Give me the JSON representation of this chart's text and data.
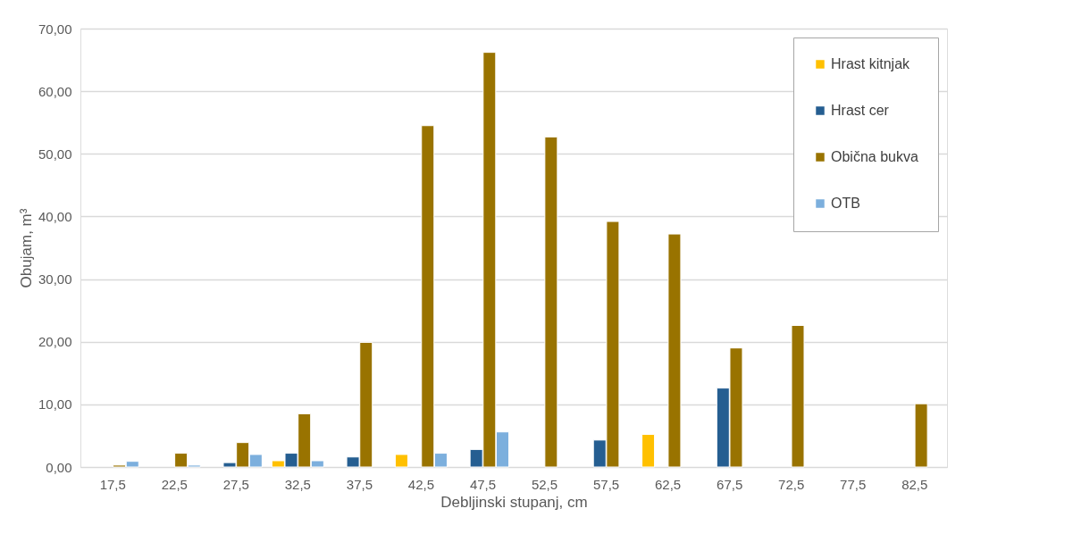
{
  "chart_data": {
    "type": "bar",
    "xlabel": "Debljinski stupanj, cm",
    "ylabel": "Obujam, m³",
    "categories": [
      "17,5",
      "22,5",
      "27,5",
      "32,5",
      "37,5",
      "42,5",
      "47,5",
      "52,5",
      "57,5",
      "62,5",
      "67,5",
      "72,5",
      "77,5",
      "82,5"
    ],
    "series": [
      {
        "name": "Hrast kitnjak",
        "color": "#ffc000",
        "values": [
          null,
          null,
          null,
          1.0,
          null,
          2.0,
          null,
          null,
          null,
          5.2,
          null,
          null,
          null,
          null
        ]
      },
      {
        "name": "Hrast cer",
        "color": "#255e91",
        "values": [
          null,
          null,
          0.7,
          2.2,
          1.6,
          null,
          2.8,
          null,
          4.3,
          null,
          12.6,
          null,
          null,
          null
        ]
      },
      {
        "name": "Obična bukva",
        "color": "#997300",
        "values": [
          0.3,
          2.2,
          3.9,
          8.5,
          19.9,
          54.5,
          66.2,
          52.7,
          39.2,
          37.2,
          19.0,
          22.6,
          null,
          10.1
        ]
      },
      {
        "name": "OTB",
        "color": "#7cafdd",
        "values": [
          0.9,
          0.3,
          2.0,
          1.0,
          null,
          2.2,
          5.6,
          null,
          null,
          null,
          null,
          null,
          null,
          null
        ]
      }
    ],
    "ylim": [
      0,
      70
    ],
    "yticks": [
      {
        "value": 0,
        "label": "0,00"
      },
      {
        "value": 10,
        "label": "10,00"
      },
      {
        "value": 20,
        "label": "20,00"
      },
      {
        "value": 30,
        "label": "30,00"
      },
      {
        "value": 40,
        "label": "40,00"
      },
      {
        "value": 50,
        "label": "50,00"
      },
      {
        "value": 60,
        "label": "60,00"
      },
      {
        "value": 70,
        "label": "70,00"
      }
    ],
    "grid": "y",
    "legend": "top right"
  }
}
